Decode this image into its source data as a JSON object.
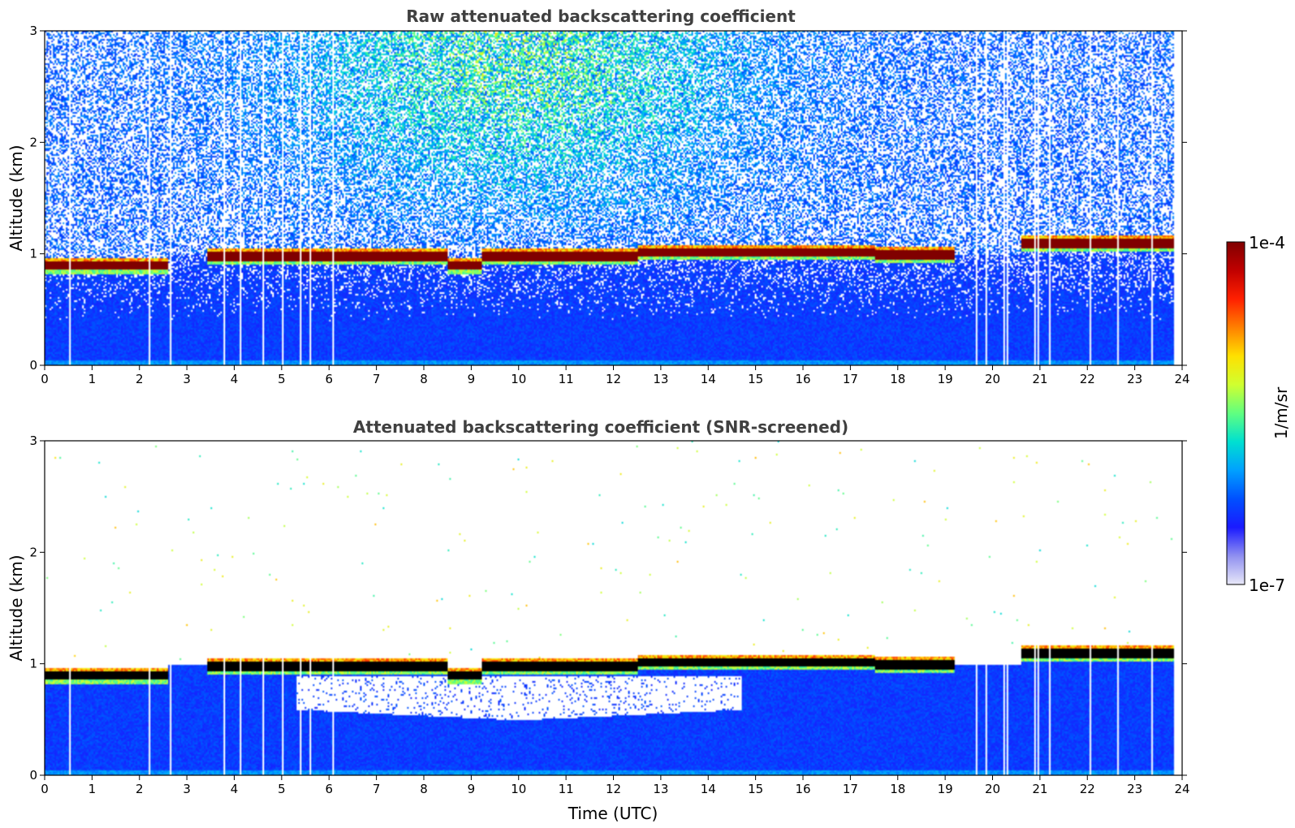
{
  "chart_data": [
    {
      "type": "heatmap",
      "title": "Raw attenuated backscattering coefficient",
      "xlabel": "",
      "ylabel": "Altitude (km)",
      "xlim": [
        0,
        24
      ],
      "ylim": [
        0,
        3
      ],
      "xticks": [
        "0",
        "1",
        "2",
        "3",
        "4",
        "5",
        "6",
        "7",
        "8",
        "9",
        "10",
        "11",
        "12",
        "13",
        "14",
        "15",
        "16",
        "17",
        "18",
        "19",
        "20",
        "21",
        "22",
        "23",
        "24"
      ],
      "yticks": [
        "0",
        "1",
        "2",
        "3"
      ],
      "cloud_base_km": [
        {
          "t0": 0.0,
          "t1": 2.6,
          "alt": 0.9
        },
        {
          "t0": 3.4,
          "t1": 8.5,
          "alt": 0.98
        },
        {
          "t0": 8.5,
          "t1": 9.2,
          "alt": 0.9
        },
        {
          "t0": 9.2,
          "t1": 12.5,
          "alt": 0.98
        },
        {
          "t0": 12.5,
          "t1": 17.5,
          "alt": 1.02
        },
        {
          "t0": 17.5,
          "t1": 19.2,
          "alt": 1.0
        },
        {
          "t0": 20.6,
          "t1": 23.8,
          "alt": 1.1
        }
      ],
      "screened": false
    },
    {
      "type": "heatmap",
      "title": "Attenuated backscattering coefficient (SNR-screened)",
      "xlabel": "Time (UTC)",
      "ylabel": "Altitude (km)",
      "xlim": [
        0,
        24
      ],
      "ylim": [
        0,
        3
      ],
      "xticks": [
        "0",
        "1",
        "2",
        "3",
        "4",
        "5",
        "6",
        "7",
        "8",
        "9",
        "10",
        "11",
        "12",
        "13",
        "14",
        "15",
        "16",
        "17",
        "18",
        "19",
        "20",
        "21",
        "22",
        "23",
        "24"
      ],
      "yticks": [
        "0",
        "1",
        "2",
        "3"
      ],
      "screened": true,
      "screened_gap": {
        "t0": 5.3,
        "t1": 14.7,
        "alt_min": 0.5,
        "alt_max": 0.9
      }
    }
  ],
  "colorbar": {
    "max_label": "1e-4",
    "min_label": "1e-7",
    "units": "1/m/sr",
    "colormap": [
      "#e8e8f8",
      "#9090f0",
      "#1a1aff",
      "#0050ff",
      "#00a0ff",
      "#00e0d0",
      "#60ff80",
      "#d0ff30",
      "#ffe000",
      "#ff8000",
      "#ff2000",
      "#c00000",
      "#800000"
    ]
  }
}
